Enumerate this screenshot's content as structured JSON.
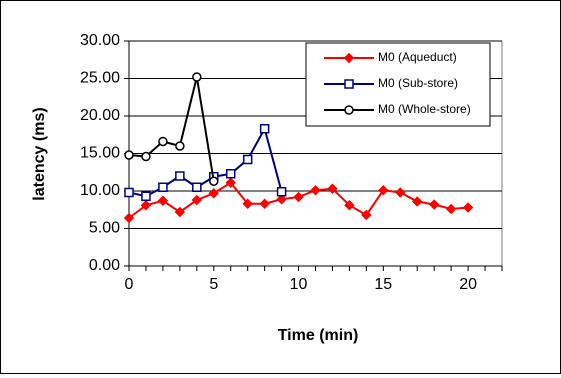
{
  "chart_data": {
    "type": "line",
    "title": "",
    "xlabel": "Time (min)",
    "ylabel": "latency (ms)",
    "xlim": [
      0,
      22
    ],
    "ylim": [
      0,
      30
    ],
    "x_ticks": [
      "0",
      "5",
      "10",
      "15",
      "20"
    ],
    "x_tick_values": [
      0,
      5,
      10,
      15,
      20
    ],
    "y_ticks": [
      "0.00",
      "5.00",
      "10.00",
      "15.00",
      "20.00",
      "25.00",
      "30.00"
    ],
    "y_tick_values": [
      0,
      5,
      10,
      15,
      20,
      25,
      30
    ],
    "grid": "horizontal",
    "legend_position": "top-right",
    "series": [
      {
        "name": "M0 (Aqueduct)",
        "color": "#ff0000",
        "marker": "diamond-filled",
        "x": [
          0,
          1,
          2,
          3,
          4,
          5,
          6,
          7,
          8,
          9,
          10,
          11,
          12,
          13,
          14,
          15,
          16,
          17,
          18,
          19,
          20
        ],
        "y": [
          6.4,
          8.1,
          8.7,
          7.2,
          8.8,
          9.7,
          11.1,
          8.3,
          8.3,
          8.9,
          9.2,
          10.1,
          10.3,
          8.1,
          6.8,
          10.1,
          9.8,
          8.6,
          8.2,
          7.6,
          7.8
        ]
      },
      {
        "name": "M0 (Sub-store)",
        "color": "#000080",
        "marker": "square-open",
        "x": [
          0,
          1,
          2,
          3,
          4,
          5,
          6,
          7,
          8,
          9
        ],
        "y": [
          9.8,
          9.3,
          10.5,
          12.0,
          10.5,
          11.9,
          12.3,
          14.2,
          18.3,
          9.9
        ]
      },
      {
        "name": "M0 (Whole-store)",
        "color": "#000000",
        "marker": "circle-open",
        "x": [
          0,
          1,
          2,
          3,
          4,
          5
        ],
        "y": [
          14.8,
          14.6,
          16.6,
          16.0,
          25.2,
          11.3
        ]
      }
    ]
  }
}
